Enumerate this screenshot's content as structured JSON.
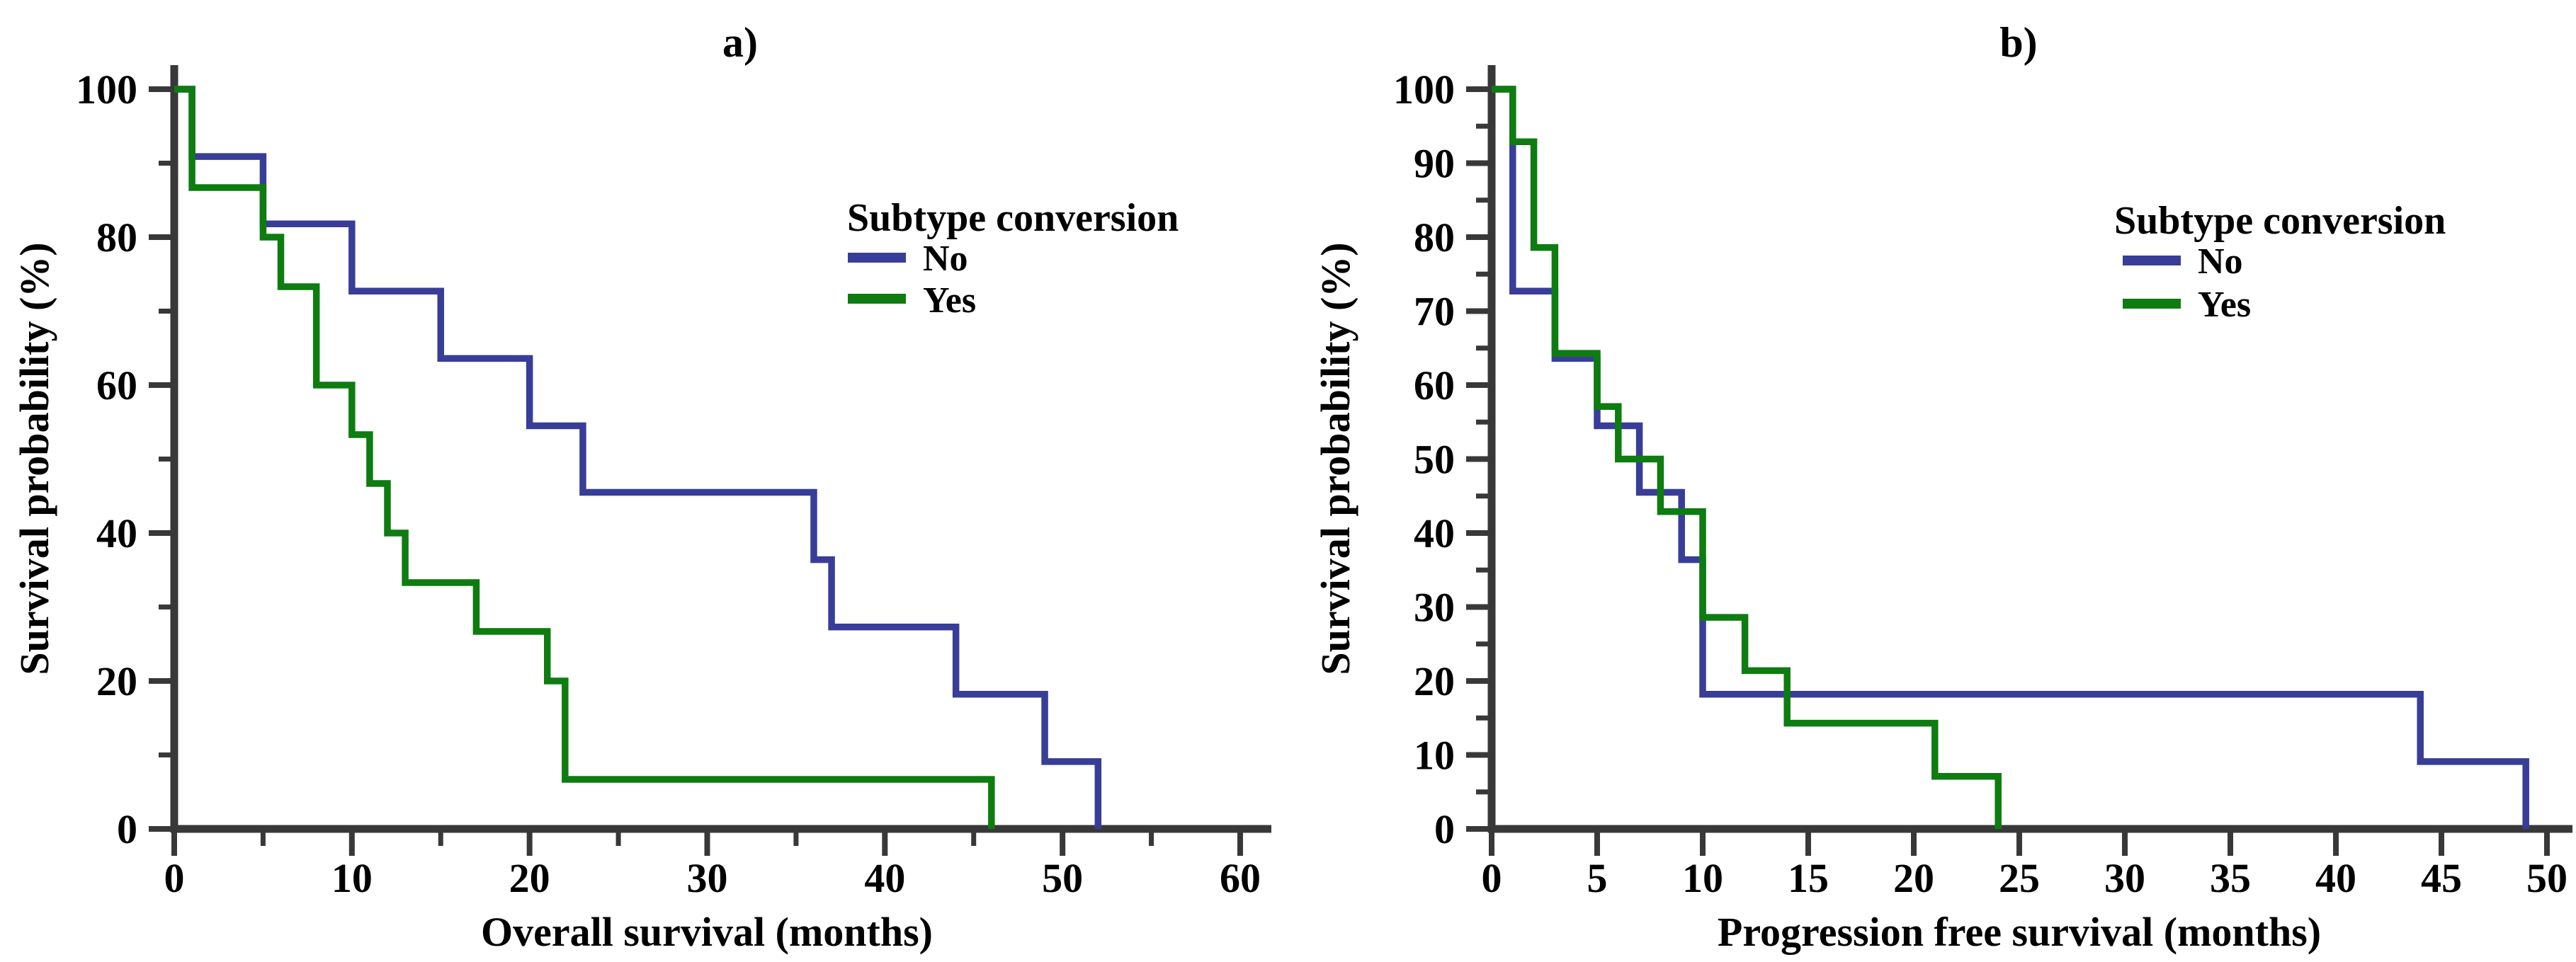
{
  "figure": {
    "background": "#ffffff",
    "axis_color": "#383838",
    "text_color": "#000000",
    "accent_blue": "#383d98",
    "accent_green": "#0e7c10"
  },
  "chart_data": [
    {
      "type": "line",
      "variant": "kaplan_meier_step",
      "panel_label": "a)",
      "title": "a)",
      "xlabel": "Overall survival (months)",
      "ylabel": "Survival probability (%)",
      "xlim": [
        0,
        60
      ],
      "ylim": [
        0,
        100
      ],
      "xticks": [
        0,
        10,
        20,
        30,
        40,
        50,
        60
      ],
      "xminorticks": [
        5,
        15,
        25,
        35,
        45,
        55
      ],
      "yticks": [
        0,
        20,
        40,
        60,
        80,
        100
      ],
      "yminorticks": [
        10,
        30,
        50,
        70,
        90
      ],
      "grid": false,
      "legend": {
        "title": "Subtype conversion",
        "position": "upper right",
        "items": [
          {
            "label": "No",
            "color": "#383d98"
          },
          {
            "label": "Yes",
            "color": "#0e7c10"
          }
        ]
      },
      "series": [
        {
          "name": "No",
          "color": "#383d98",
          "steps": [
            [
              0,
              100
            ],
            [
              1,
              90.9
            ],
            [
              5,
              81.8
            ],
            [
              10,
              72.7
            ],
            [
              15,
              63.6
            ],
            [
              20,
              54.5
            ],
            [
              23,
              45.5
            ],
            [
              36,
              36.4
            ],
            [
              37,
              27.3
            ],
            [
              44,
              18.2
            ],
            [
              49,
              9.1
            ],
            [
              52,
              0
            ]
          ]
        },
        {
          "name": "Yes",
          "color": "#0e7c10",
          "steps": [
            [
              0,
              100
            ],
            [
              1,
              86.7
            ],
            [
              5,
              80
            ],
            [
              6,
              73.3
            ],
            [
              8,
              60
            ],
            [
              10,
              53.3
            ],
            [
              11,
              46.7
            ],
            [
              12,
              40
            ],
            [
              13,
              33.3
            ],
            [
              17,
              26.7
            ],
            [
              21,
              20
            ],
            [
              22,
              6.7
            ],
            [
              46,
              0
            ]
          ]
        }
      ]
    },
    {
      "type": "line",
      "variant": "kaplan_meier_step",
      "panel_label": "b)",
      "title": "b)",
      "xlabel": "Progression free survival (months)",
      "ylabel": "Survival probability (%)",
      "xlim": [
        0,
        50
      ],
      "ylim": [
        0,
        100
      ],
      "xticks": [
        0,
        5,
        10,
        15,
        20,
        25,
        30,
        35,
        40,
        45,
        50
      ],
      "xminorticks": [],
      "yticks": [
        0,
        10,
        20,
        30,
        40,
        50,
        60,
        70,
        80,
        90,
        100
      ],
      "yminorticks": [
        5,
        15,
        25,
        35,
        45,
        55,
        65,
        75,
        85,
        95
      ],
      "grid": false,
      "legend": {
        "title": "Subtype conversion",
        "position": "upper right",
        "items": [
          {
            "label": "No",
            "color": "#383d98"
          },
          {
            "label": "Yes",
            "color": "#0e7c10"
          }
        ]
      },
      "series": [
        {
          "name": "No",
          "color": "#383d98",
          "steps": [
            [
              0,
              100
            ],
            [
              1,
              72.7
            ],
            [
              3,
              63.6
            ],
            [
              5,
              54.5
            ],
            [
              7,
              45.5
            ],
            [
              9,
              36.4
            ],
            [
              10,
              18.2
            ],
            [
              44,
              9.1
            ],
            [
              49,
              0
            ]
          ]
        },
        {
          "name": "Yes",
          "color": "#0e7c10",
          "steps": [
            [
              0,
              100
            ],
            [
              1,
              92.9
            ],
            [
              2,
              78.6
            ],
            [
              3,
              64.3
            ],
            [
              5,
              57.1
            ],
            [
              6,
              50
            ],
            [
              8,
              42.9
            ],
            [
              10,
              28.6
            ],
            [
              12,
              21.4
            ],
            [
              14,
              14.3
            ],
            [
              21,
              7.1
            ],
            [
              24,
              0
            ]
          ]
        }
      ]
    }
  ]
}
